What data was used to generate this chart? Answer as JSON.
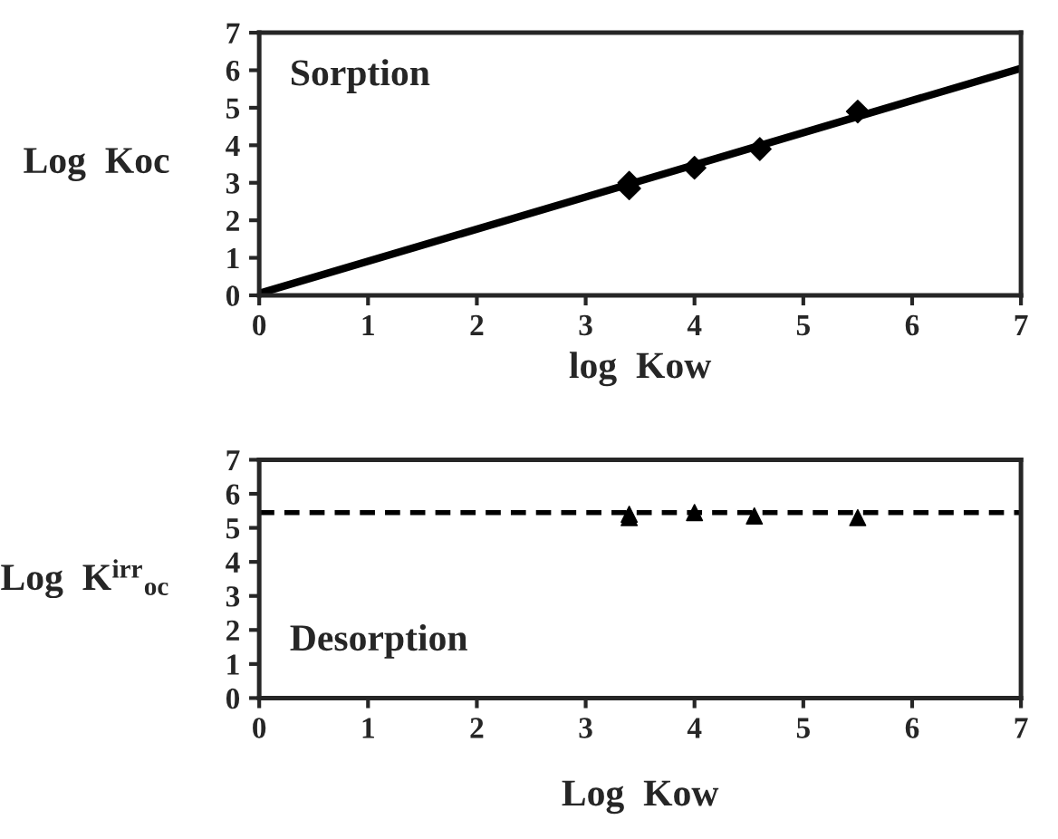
{
  "chart_data": [
    {
      "type": "scatter",
      "xlabel": "log  Kow",
      "ylabel": "Log  Koc",
      "annotations": [
        "Sorption"
      ],
      "marker": "diamond",
      "xlim": [
        0,
        7
      ],
      "ylim": [
        0,
        7
      ],
      "xticks": [
        0,
        1,
        2,
        3,
        4,
        5,
        6,
        7
      ],
      "yticks": [
        0,
        1,
        2,
        3,
        4,
        5,
        6,
        7
      ],
      "grid": false,
      "legend": false,
      "series": [
        {
          "color": "#000000",
          "x": [
            3.4,
            3.4,
            4.0,
            4.6,
            5.5
          ],
          "values": [
            2.85,
            3.0,
            3.4,
            3.9,
            4.9
          ]
        },
        {
          "type": "line",
          "marker": "none",
          "color": "#000000",
          "x": [
            0,
            7
          ],
          "values": [
            0.05,
            6.05
          ]
        }
      ]
    },
    {
      "type": "scatter",
      "xlabel": "Log  Kow",
      "ylabel": "Log  K$^{irr}$$_{oc}$",
      "annotations": [
        "Desorption"
      ],
      "marker": "triangle",
      "xlim": [
        0,
        7
      ],
      "ylim": [
        0,
        7
      ],
      "xticks": [
        0,
        1,
        2,
        3,
        4,
        5,
        6,
        7
      ],
      "yticks": [
        0,
        1,
        2,
        3,
        4,
        5,
        6,
        7
      ],
      "grid": false,
      "legend": false,
      "series": [
        {
          "color": "#000000",
          "x": [
            3.4,
            3.4,
            4.0,
            4.55,
            5.5
          ],
          "values": [
            5.3,
            5.4,
            5.45,
            5.35,
            5.3
          ]
        }
      ],
      "ref_lines": [
        {
          "axis": "y",
          "value": 5.45,
          "line_style": "dashed",
          "color": "#000000"
        }
      ]
    }
  ]
}
